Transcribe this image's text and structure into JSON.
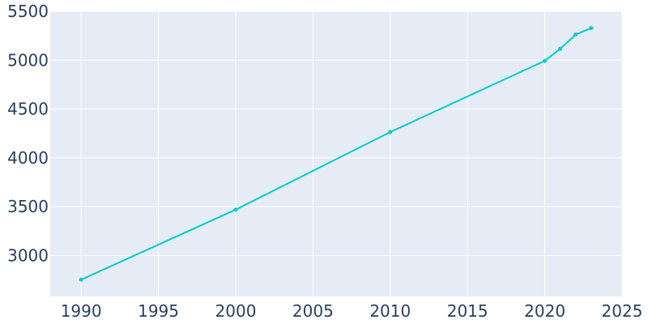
{
  "colors": {
    "plot_background": "#e5ecf6",
    "gridline": "#ffffff",
    "line": "#00cccc",
    "tick_text": "#2a3f5f"
  },
  "chart_data": {
    "type": "line",
    "title": "",
    "xlabel": "",
    "ylabel": "",
    "xlim": [
      1988,
      2025
    ],
    "ylim": [
      2580,
      5500
    ],
    "x_ticks": [
      1990,
      1995,
      2000,
      2005,
      2010,
      2015,
      2020,
      2025
    ],
    "y_ticks": [
      3000,
      3500,
      4000,
      4500,
      5000,
      5500
    ],
    "x_tick_labels": [
      "1990",
      "1995",
      "2000",
      "2005",
      "2010",
      "2015",
      "2020",
      "2025"
    ],
    "y_tick_labels": [
      "3000",
      "3500",
      "4000",
      "4500",
      "5000",
      "5500"
    ],
    "grid": true,
    "legend": "none",
    "series": [
      {
        "x": [
          1990,
          2000,
          2010,
          2020,
          2021,
          2022,
          2023
        ],
        "y": [
          2752,
          3469,
          4264,
          4993,
          5117,
          5263,
          5328
        ]
      }
    ]
  }
}
